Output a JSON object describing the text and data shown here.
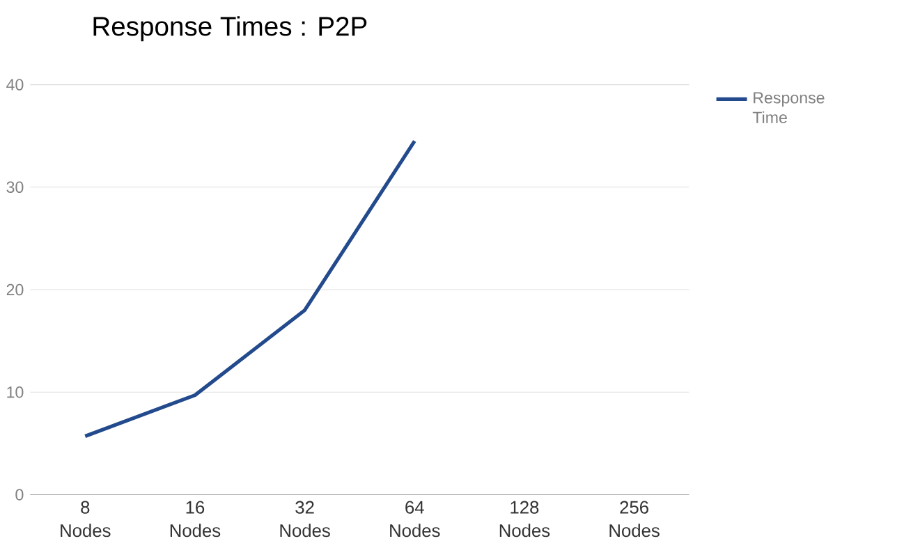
{
  "chart_data": {
    "type": "line",
    "title": "Response Times : P2P",
    "categories": [
      "8 Nodes",
      "16 Nodes",
      "32 Nodes",
      "64 Nodes",
      "128 Nodes",
      "256 Nodes"
    ],
    "series": [
      {
        "name": "Response Time",
        "color": "#224a8c",
        "values": [
          5.7,
          9.7,
          18,
          34.5,
          null,
          null
        ]
      }
    ],
    "ylim": [
      0,
      40
    ],
    "yticks": [
      0,
      10,
      20,
      30,
      40
    ],
    "grid": "y",
    "legend": "top right",
    "marker": "none",
    "line_style": "solid"
  }
}
